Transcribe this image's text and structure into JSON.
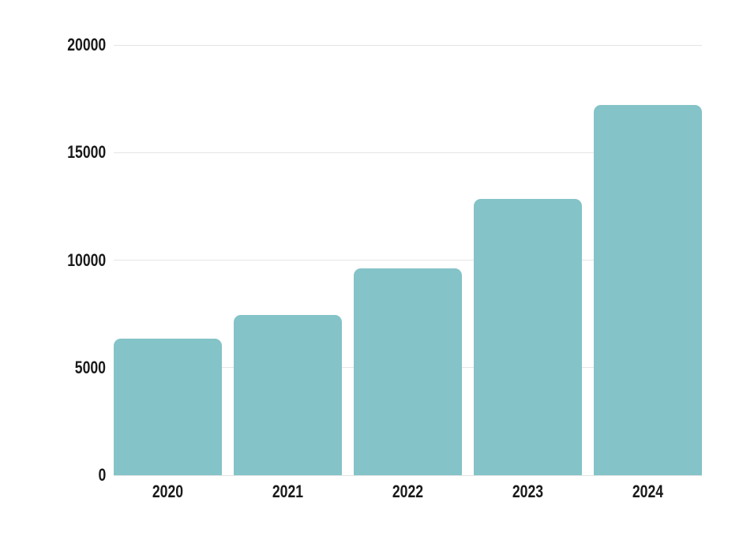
{
  "chart_data": {
    "type": "bar",
    "title": "",
    "xlabel": "",
    "ylabel": "",
    "categories": [
      "2020",
      "2021",
      "2022",
      "2023",
      "2024"
    ],
    "values": [
      6350,
      7450,
      9600,
      12850,
      17200
    ],
    "ylim": [
      0,
      20000
    ],
    "yticks": [
      0,
      5000,
      10000,
      15000,
      20000
    ],
    "ytick_labels": [
      "0",
      "5000",
      "10000",
      "15000",
      "20000"
    ],
    "grid": true,
    "legend_position": "none"
  },
  "style": {
    "bar_color": "#84c3c7",
    "gridline_color": "#e4e4e4",
    "label_color": "#1a1a1a",
    "background_color": "#ffffff"
  }
}
